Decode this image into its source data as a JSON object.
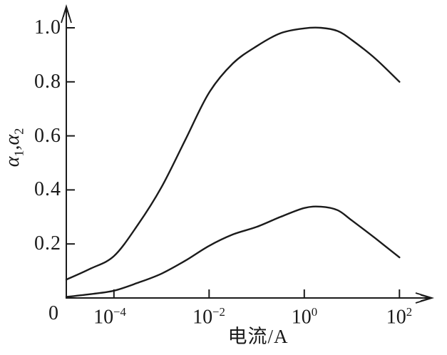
{
  "colors": {
    "ink": "#1b1b1b",
    "background": "#ffffff"
  },
  "y_axis": {
    "title_parts": {
      "alpha1": "α",
      "sub1": "1",
      "comma": ",",
      "alpha2": "α",
      "sub2": "2"
    },
    "ticks": [
      "1.0",
      "0.8",
      "0.6",
      "0.4",
      "0.2"
    ],
    "origin": "0"
  },
  "x_axis": {
    "title": "电流/A",
    "ticks": [
      {
        "base": "10",
        "exp": "−4"
      },
      {
        "base": "10",
        "exp": "−2"
      },
      {
        "base": "10",
        "exp": "0"
      },
      {
        "base": "10",
        "exp": "2"
      }
    ]
  },
  "chart_data": {
    "type": "line",
    "title": "",
    "xlabel": "电流/A",
    "ylabel": "α₁,α₂",
    "x_scale": "log10",
    "x_tick_log10": [
      -4,
      -2,
      0,
      2
    ],
    "x_tick_labels": [
      "10⁻⁴",
      "10⁻²",
      "10⁰",
      "10²"
    ],
    "x_axis_origin_label": "0",
    "x_range_log10": [
      -5,
      2.7
    ],
    "y_ticks": [
      0.2,
      0.4,
      0.6,
      0.8,
      1.0
    ],
    "ylim": [
      0,
      1.07
    ],
    "grid": false,
    "legend": "none",
    "series": [
      {
        "name": "α1",
        "points_log10x_alpha": [
          [
            -5,
            0.068
          ],
          [
            -4.5,
            0.108
          ],
          [
            -4,
            0.155
          ],
          [
            -3.5,
            0.27
          ],
          [
            -3,
            0.41
          ],
          [
            -2.5,
            0.585
          ],
          [
            -2,
            0.76
          ],
          [
            -1.5,
            0.868
          ],
          [
            -1,
            0.932
          ],
          [
            -0.5,
            0.98
          ],
          [
            0,
            0.998
          ],
          [
            0.35,
            1.0
          ],
          [
            0.7,
            0.988
          ],
          [
            1,
            0.955
          ],
          [
            1.5,
            0.885
          ],
          [
            2,
            0.8
          ]
        ]
      },
      {
        "name": "α2",
        "points_log10x_alpha": [
          [
            -5,
            0.004
          ],
          [
            -4.5,
            0.014
          ],
          [
            -4,
            0.027
          ],
          [
            -3.5,
            0.056
          ],
          [
            -3,
            0.09
          ],
          [
            -2.5,
            0.138
          ],
          [
            -2,
            0.193
          ],
          [
            -1.5,
            0.235
          ],
          [
            -1,
            0.263
          ],
          [
            -0.5,
            0.3
          ],
          [
            0,
            0.333
          ],
          [
            0.35,
            0.338
          ],
          [
            0.7,
            0.325
          ],
          [
            1,
            0.287
          ],
          [
            1.5,
            0.22
          ],
          [
            2,
            0.15
          ]
        ]
      }
    ]
  }
}
